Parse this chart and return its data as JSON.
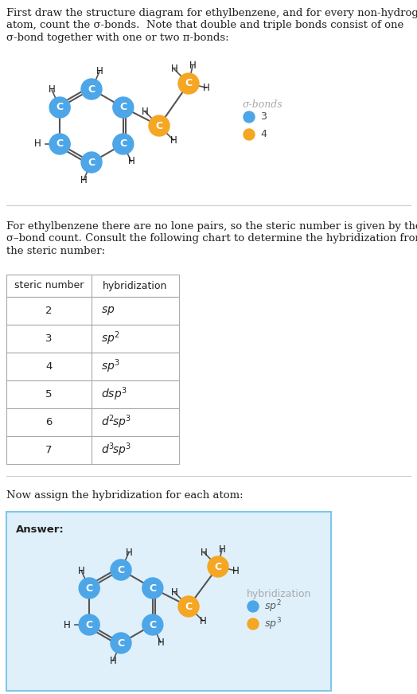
{
  "title_text1": "First draw the structure diagram for ethylbenzene, and for every non-hydrogen",
  "title_text2": "atom, count the σ-bonds.  Note that double and triple bonds consist of one",
  "title_text3": "σ-bond together with one or two π-bonds:",
  "para2_text1": "For ethylbenzene there are no lone pairs, so the steric number is given by the",
  "para2_text2": "σ–bond count. Consult the following chart to determine the hybridization from",
  "para2_text3": "the steric number:",
  "para3_text": "Now assign the hybridization for each atom:",
  "answer_label": "Answer:",
  "table_headers": [
    "steric number",
    "hybridization"
  ],
  "table_rows": [
    [
      "2",
      "sp"
    ],
    [
      "3",
      "sp²"
    ],
    [
      "4",
      "sp³"
    ],
    [
      "5",
      "dsp³"
    ],
    [
      "6",
      "d²sp³"
    ],
    [
      "7",
      "d³sp³"
    ]
  ],
  "blue_color": "#4da6e8",
  "orange_color": "#f5a623",
  "legend1_sigma_label": "σ-bonds",
  "legend1_items": [
    [
      "3",
      "#4da6e8"
    ],
    [
      "4",
      "#f5a623"
    ]
  ],
  "legend2_label": "hybridization",
  "legend2_items": [
    [
      "sp²",
      "#4da6e8"
    ],
    [
      "sp³",
      "#f5a623"
    ]
  ],
  "bg_color": "#ffffff",
  "answer_bg": "#dff0fa",
  "sep_color": "#cccccc",
  "text_color": "#222222",
  "table_border_color": "#aaaaaa",
  "bond_color": "#555555"
}
